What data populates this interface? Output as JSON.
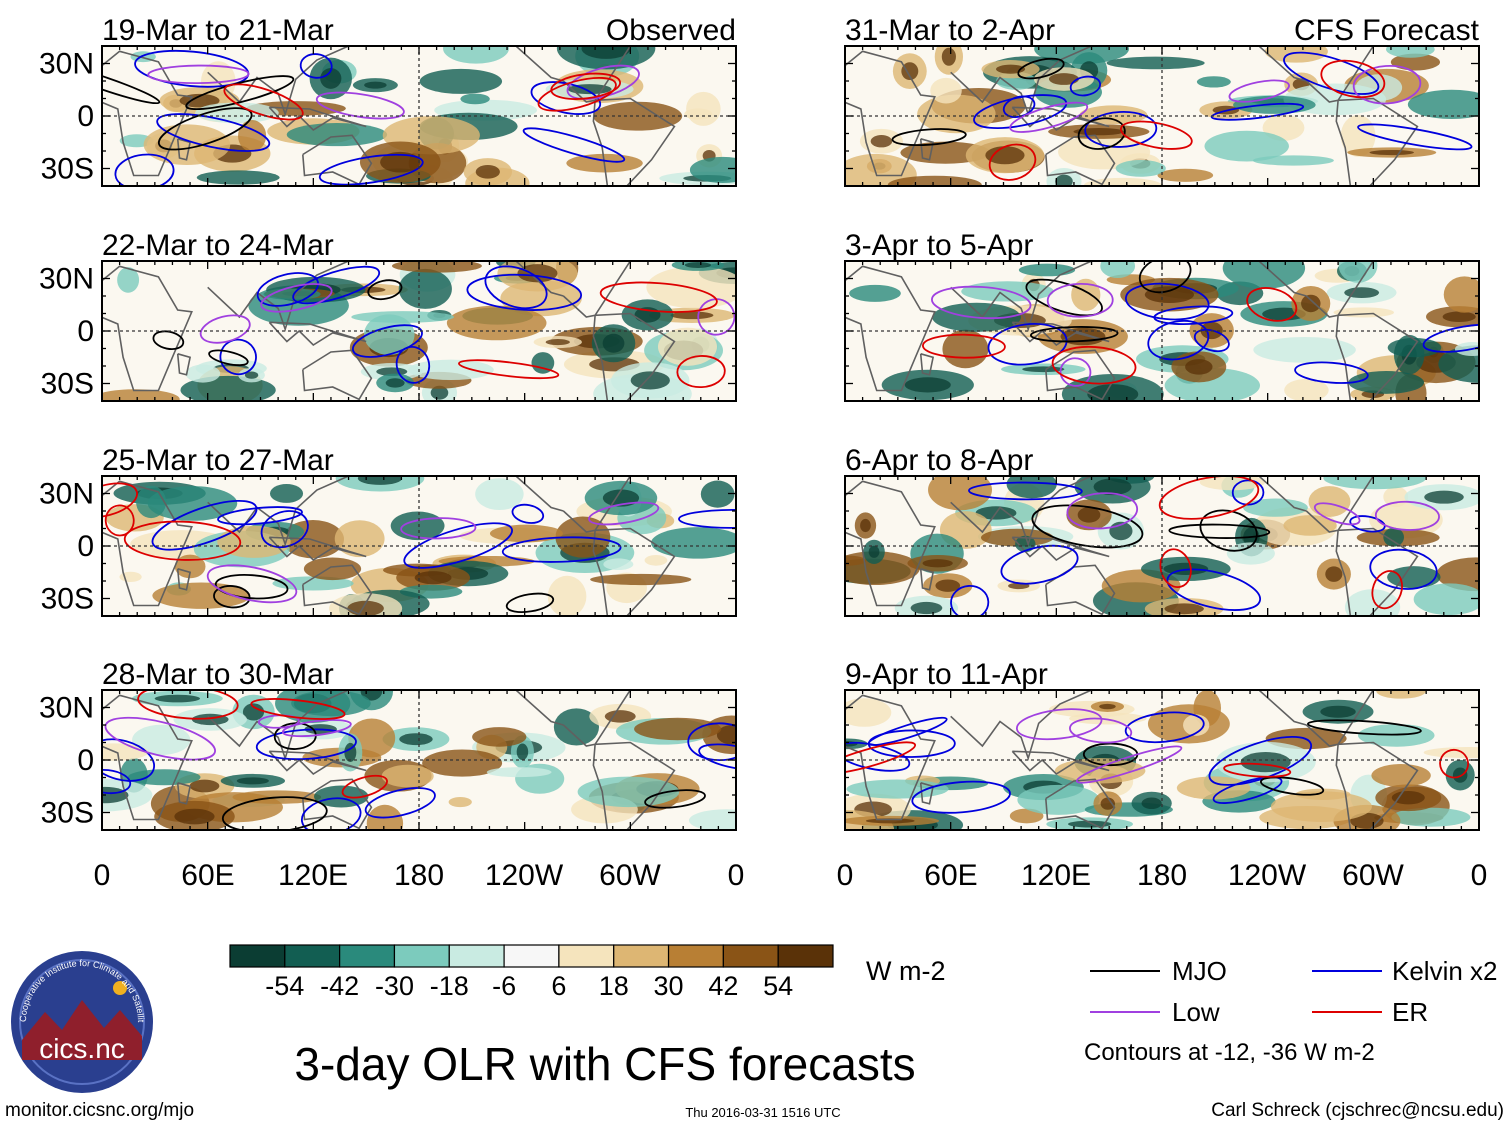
{
  "figure": {
    "title": "3-day OLR with CFS forecasts",
    "observed_label": "Observed",
    "forecast_label": "CFS Forecast",
    "website": "monitor.cicsnc.org/mjo",
    "timestamp": "Thu 2016-03-31 1516 UTC",
    "author": "Carl Schreck (cjschrec@ncsu.edu)",
    "logo_text": "cics.nc",
    "logo_ring_text": "Cooperative Institute for Climate and Satellites"
  },
  "chart_data": {
    "type": "heatmap",
    "variable": "3-day mean OLR anomaly",
    "x_ticks": [
      "0",
      "60E",
      "120E",
      "180",
      "120W",
      "60W",
      "0"
    ],
    "y_ticks": [
      "30N",
      "0",
      "30S"
    ],
    "xlim_degrees_east": [
      0,
      360
    ],
    "ylim_degrees_north": [
      -40,
      40
    ],
    "panels": [
      {
        "period": "19-Mar to 21-Mar",
        "source": "Observed"
      },
      {
        "period": "22-Mar to 24-Mar",
        "source": "Observed"
      },
      {
        "period": "25-Mar to 27-Mar",
        "source": "Observed"
      },
      {
        "period": "28-Mar to 30-Mar",
        "source": "Observed"
      },
      {
        "period": "31-Mar to 2-Apr",
        "source": "CFS Forecast"
      },
      {
        "period": "3-Apr to 5-Apr",
        "source": "CFS Forecast"
      },
      {
        "period": "6-Apr to 8-Apr",
        "source": "CFS Forecast"
      },
      {
        "period": "9-Apr to 11-Apr",
        "source": "CFS Forecast"
      }
    ],
    "colorbar": {
      "unit": "W m-2",
      "labels": [
        "-54",
        "-42",
        "-30",
        "-18",
        "-6",
        "6",
        "18",
        "30",
        "42",
        "54"
      ],
      "colors": [
        "#0b3d33",
        "#125e52",
        "#2a8a7c",
        "#7ccbbd",
        "#c9ebe2",
        "#f7f7f7",
        "#f5e4bd",
        "#ddb673",
        "#b87f34",
        "#8a5416",
        "#5a3208"
      ]
    },
    "contour_legend": {
      "items": [
        {
          "name": "MJO",
          "color": "#000000"
        },
        {
          "name": "Kelvin x2",
          "color": "#0000dd"
        },
        {
          "name": "Low",
          "color": "#a040e0"
        },
        {
          "name": "ER",
          "color": "#dd0000"
        }
      ],
      "note": "Contours at -12, -36 W m-2"
    }
  }
}
